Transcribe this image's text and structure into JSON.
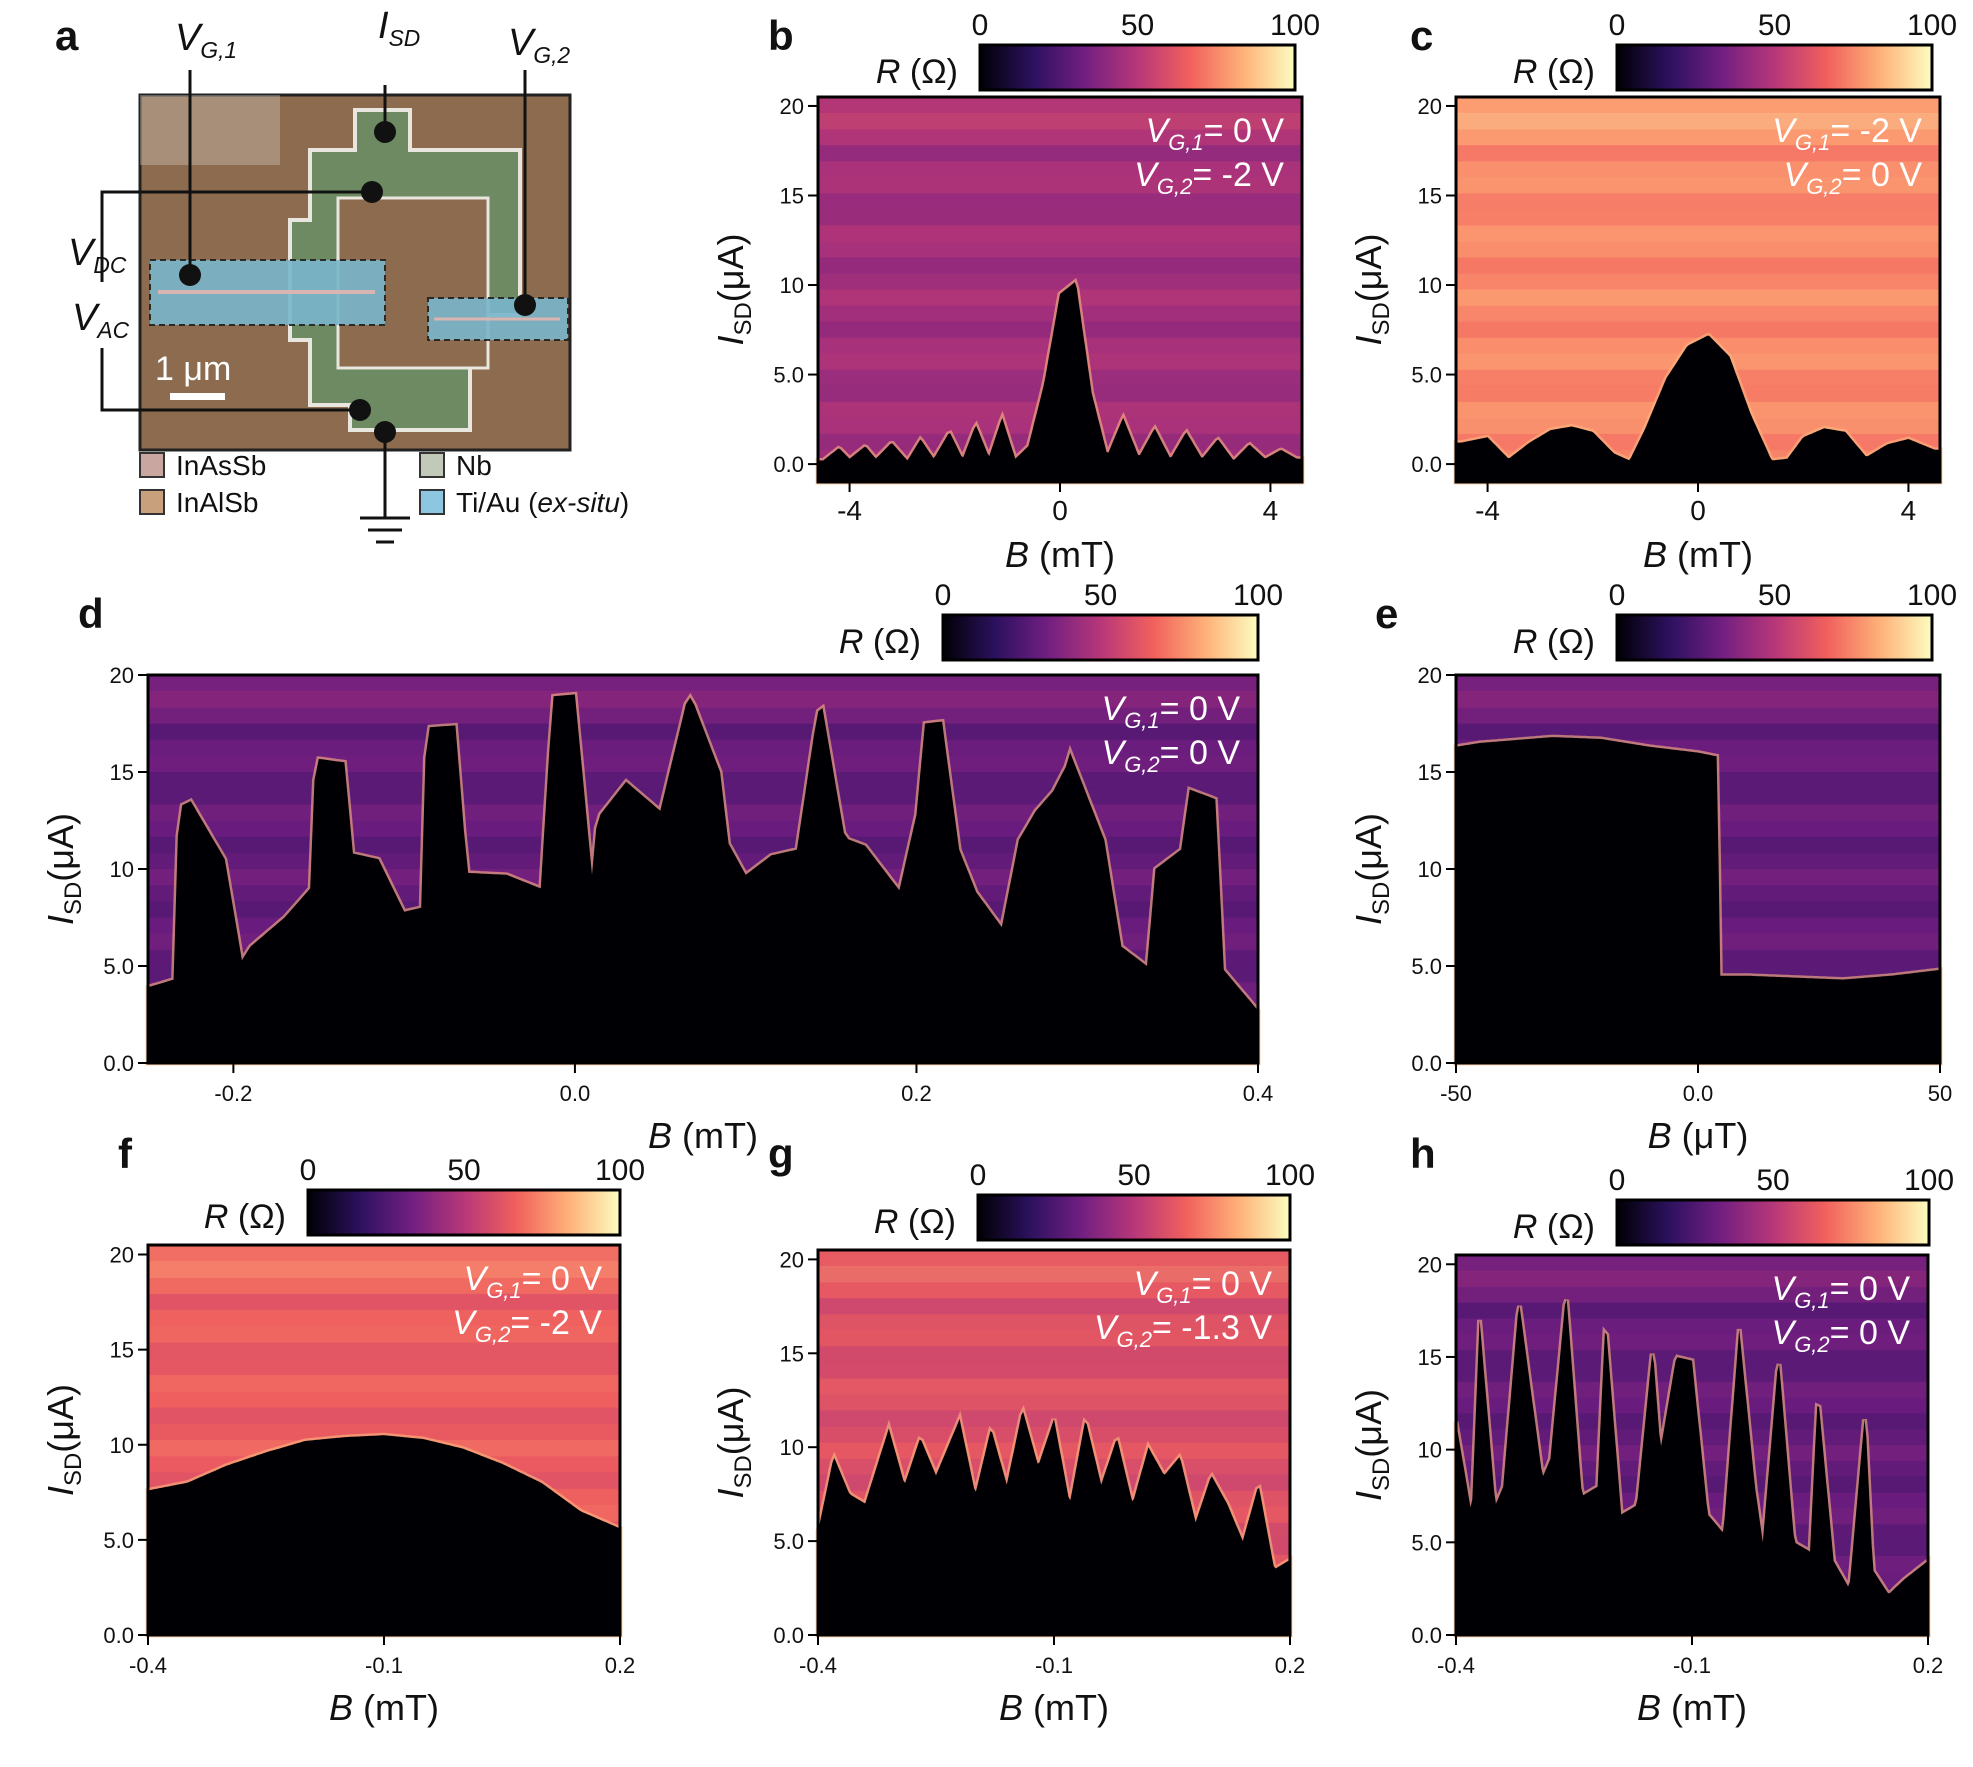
{
  "colorbar": {
    "label": "R (Ω)",
    "ticks": [
      "0",
      "50",
      "100"
    ],
    "range": [
      0,
      100
    ],
    "colormap": "inferno",
    "stops": [
      "#000004",
      "#2c115f",
      "#721f81",
      "#b73779",
      "#f1605d",
      "#feb078",
      "#fcfdbf"
    ]
  },
  "panel_a": {
    "letter": "a",
    "labels": {
      "vg1": "V",
      "vg1_sub": "G,1",
      "isd": "I",
      "isd_sub": "SD",
      "vg2": "V",
      "vg2_sub": "G,2",
      "vdc": "V",
      "vdc_sub": "DC",
      "vac": "V",
      "vac_sub": "AC",
      "scale": "1 μm"
    },
    "legend": [
      {
        "label": "InAsSb",
        "color": "#c9a6a0"
      },
      {
        "label": "InAlSb",
        "color": "#c9a07c"
      },
      {
        "label": "Nb",
        "color": "#c3c9b8"
      },
      {
        "label": "Ti/Au (ex-situ)",
        "color": "#8cc6e0"
      }
    ],
    "colors": {
      "substrate": "#8c6b4e",
      "nb": "#6e8a63",
      "tiau": "#7ab6cc"
    }
  },
  "chart_data": [
    {
      "panel": "b",
      "type": "heatmap",
      "xlabel": "B (mT)",
      "ylabel": "ISD(μA)",
      "xlim": [
        -4.6,
        4.6
      ],
      "ylim": [
        -1,
        20.5
      ],
      "xticks": [
        "-4",
        "0",
        "4"
      ],
      "yticks": [
        "0.0",
        "5.0",
        "10",
        "15",
        "20"
      ],
      "annotation": [
        "VG,1= 0 V",
        "VG,2= -2 V"
      ],
      "bg_R": 45,
      "critical_current": {
        "B": [
          -4.5,
          -4.2,
          -4.0,
          -3.7,
          -3.5,
          -3.2,
          -2.9,
          -2.65,
          -2.4,
          -2.1,
          -1.85,
          -1.6,
          -1.35,
          -1.1,
          -0.85,
          -0.6,
          -0.3,
          0.0,
          0.3,
          0.6,
          0.9,
          1.2,
          1.5,
          1.8,
          2.1,
          2.4,
          2.7,
          3.0,
          3.3,
          3.6,
          3.9,
          4.2,
          4.5
        ],
        "Ic": [
          0.2,
          0.9,
          0.3,
          1.0,
          0.3,
          1.2,
          0.2,
          1.4,
          0.3,
          1.8,
          0.3,
          2.2,
          0.4,
          2.6,
          0.3,
          1.0,
          4.5,
          9.5,
          10.2,
          4.0,
          0.5,
          2.6,
          0.4,
          2.0,
          0.3,
          1.8,
          0.3,
          1.4,
          0.2,
          1.1,
          0.3,
          0.8,
          0.3
        ]
      }
    },
    {
      "panel": "c",
      "type": "heatmap",
      "xlabel": "B (mT)",
      "ylabel": "ISD(μA)",
      "xlim": [
        -4.6,
        4.6
      ],
      "ylim": [
        -1,
        20.5
      ],
      "xticks": [
        "-4",
        "0",
        "4"
      ],
      "yticks": [
        "0.0",
        "5.0",
        "10",
        "15",
        "20"
      ],
      "annotation": [
        "VG,1= -2 V",
        "VG,2= 0 V"
      ],
      "bg_R": 75,
      "critical_current": {
        "B": [
          -4.5,
          -4.0,
          -3.6,
          -3.2,
          -2.8,
          -2.4,
          -2.0,
          -1.6,
          -1.3,
          -1.0,
          -0.6,
          -0.2,
          0.2,
          0.6,
          1.0,
          1.4,
          1.7,
          2.0,
          2.4,
          2.8,
          3.2,
          3.6,
          4.0,
          4.5
        ],
        "Ic": [
          1.2,
          1.5,
          0.3,
          1.2,
          1.9,
          2.1,
          1.8,
          0.6,
          0.2,
          2.0,
          4.8,
          6.6,
          7.2,
          6.0,
          2.8,
          0.2,
          0.3,
          1.5,
          2.0,
          1.8,
          0.4,
          1.1,
          1.4,
          0.8
        ]
      }
    },
    {
      "panel": "d",
      "type": "heatmap",
      "xlabel": "B (mT)",
      "ylabel": "ISD(μA)",
      "xlim": [
        -0.25,
        0.4
      ],
      "ylim": [
        0,
        20
      ],
      "xticks": [
        "-0.2",
        "0.0",
        "0.2",
        "0.4"
      ],
      "yticks": [
        "0.0",
        "5.0",
        "10",
        "15",
        "20"
      ],
      "annotation": [
        "VG,1= 0 V",
        "VG,2= 0 V"
      ],
      "bg_R": 30,
      "critical_current": {
        "B": [
          -0.25,
          -0.235,
          -0.232,
          -0.225,
          -0.205,
          -0.195,
          -0.19,
          -0.17,
          -0.155,
          -0.152,
          -0.135,
          -0.13,
          -0.115,
          -0.1,
          -0.09,
          -0.087,
          -0.07,
          -0.063,
          -0.04,
          -0.02,
          -0.013,
          0.0,
          0.01,
          0.013,
          0.03,
          0.05,
          0.065,
          0.068,
          0.085,
          0.09,
          0.1,
          0.115,
          0.13,
          0.142,
          0.145,
          0.158,
          0.17,
          0.19,
          0.2,
          0.205,
          0.215,
          0.225,
          0.235,
          0.25,
          0.26,
          0.27,
          0.28,
          0.29,
          0.29,
          0.31,
          0.32,
          0.335,
          0.34,
          0.355,
          0.36,
          0.375,
          0.38,
          0.4
        ],
        "Ic": [
          3.9,
          4.3,
          13.2,
          13.5,
          10.5,
          5.3,
          6.0,
          7.5,
          9.0,
          15.7,
          15.5,
          10.8,
          10.5,
          7.8,
          8.0,
          17.3,
          17.4,
          9.8,
          9.7,
          9.0,
          18.9,
          19.0,
          9.7,
          12.6,
          14.5,
          13.0,
          18.5,
          18.9,
          15.0,
          11.3,
          9.7,
          10.7,
          11.0,
          18.1,
          18.3,
          11.6,
          11.2,
          8.9,
          12.8,
          17.5,
          17.6,
          11.0,
          8.8,
          7.0,
          11.5,
          13.0,
          14.0,
          15.7,
          16.0,
          11.5,
          6.0,
          5.0,
          10.0,
          11.0,
          14.1,
          13.6,
          4.8,
          2.7
        ]
      }
    },
    {
      "panel": "e",
      "type": "heatmap",
      "xlabel": "B (μT)",
      "ylabel": "ISD(μA)",
      "xlim": [
        -50,
        50
      ],
      "ylim": [
        0,
        20
      ],
      "xticks": [
        "-50",
        "0.0",
        "50"
      ],
      "yticks": [
        "0.0",
        "5.0",
        "10",
        "15",
        "20"
      ],
      "annotation": [],
      "bg_R": 30,
      "critical_current": {
        "B": [
          -50,
          -45,
          -40,
          -30,
          -20,
          -10,
          0,
          4,
          4.5,
          10,
          20,
          30,
          40,
          50
        ],
        "Ic": [
          16.3,
          16.5,
          16.6,
          16.8,
          16.7,
          16.3,
          16.0,
          15.8,
          4.5,
          4.5,
          4.4,
          4.3,
          4.5,
          4.8
        ]
      }
    },
    {
      "panel": "f",
      "type": "heatmap",
      "xlabel": "B (mT)",
      "ylabel": "ISD(μA)",
      "xlim": [
        -0.4,
        0.2
      ],
      "ylim": [
        0,
        20.5
      ],
      "xticks": [
        "-0.4",
        "-0.1",
        "0.2"
      ],
      "yticks": [
        "0.0",
        "5.0",
        "10",
        "15",
        "20"
      ],
      "annotation": [
        "VG,1= 0 V",
        "VG,2= -2 V"
      ],
      "bg_R": 65,
      "critical_current": {
        "B": [
          -0.4,
          -0.35,
          -0.3,
          -0.25,
          -0.2,
          -0.15,
          -0.1,
          -0.05,
          0.0,
          0.05,
          0.1,
          0.15,
          0.2
        ],
        "Ic": [
          7.6,
          8.0,
          8.9,
          9.6,
          10.2,
          10.4,
          10.5,
          10.3,
          9.8,
          9.0,
          8.0,
          6.5,
          5.6
        ]
      }
    },
    {
      "panel": "g",
      "type": "heatmap",
      "xlabel": "B (mT)",
      "ylabel": "ISD(μA)",
      "xlim": [
        -0.4,
        0.2
      ],
      "ylim": [
        0,
        20.5
      ],
      "xticks": [
        "-0.4",
        "-0.1",
        "0.2"
      ],
      "yticks": [
        "0.0",
        "5.0",
        "10",
        "15",
        "20"
      ],
      "annotation": [
        "VG,1= 0 V",
        "VG,2= -1.3 V"
      ],
      "bg_R": 60,
      "critical_current": {
        "B": [
          -0.4,
          -0.38,
          -0.36,
          -0.34,
          -0.31,
          -0.29,
          -0.27,
          -0.25,
          -0.22,
          -0.2,
          -0.18,
          -0.16,
          -0.14,
          -0.12,
          -0.1,
          -0.08,
          -0.06,
          -0.04,
          -0.02,
          0.0,
          0.02,
          0.04,
          0.06,
          0.08,
          0.1,
          0.12,
          0.14,
          0.16,
          0.18,
          0.2
        ],
        "Ic": [
          5.5,
          9.5,
          7.5,
          7.0,
          11.0,
          8.0,
          10.5,
          8.5,
          11.5,
          7.5,
          11.0,
          8.0,
          12.0,
          9.0,
          11.5,
          7.0,
          11.5,
          8.0,
          10.5,
          7.0,
          10.0,
          8.5,
          9.5,
          6.0,
          8.5,
          7.0,
          5.0,
          8.0,
          3.5,
          4.0
        ]
      }
    },
    {
      "panel": "h",
      "type": "heatmap",
      "xlabel": "B (mT)",
      "ylabel": "ISD(μA)",
      "xlim": [
        -0.4,
        0.2
      ],
      "ylim": [
        0,
        20.5
      ],
      "xticks": [
        "-0.4",
        "-0.1",
        "0.2"
      ],
      "yticks": [
        "0.0",
        "5.0",
        "10",
        "15",
        "20"
      ],
      "annotation": [
        "VG,1= 0 V",
        "VG,2= 0 V"
      ],
      "bg_R": 30,
      "critical_current": {
        "B": [
          -0.4,
          -0.38,
          -0.37,
          -0.35,
          -0.34,
          -0.32,
          -0.29,
          -0.28,
          -0.26,
          -0.24,
          -0.22,
          -0.21,
          -0.19,
          -0.17,
          -0.15,
          -0.14,
          -0.12,
          -0.1,
          -0.08,
          -0.06,
          -0.04,
          -0.02,
          -0.01,
          0.01,
          0.03,
          0.05,
          0.06,
          0.08,
          0.1,
          0.12,
          0.13,
          0.15,
          0.17,
          0.2
        ],
        "Ic": [
          11.5,
          6.5,
          17.0,
          7.0,
          8.0,
          18.0,
          8.5,
          9.5,
          18.5,
          7.5,
          8.0,
          17.0,
          6.5,
          7.0,
          15.5,
          10.0,
          15.0,
          14.8,
          6.5,
          5.5,
          16.5,
          8.0,
          5.0,
          15.0,
          5.0,
          4.5,
          13.0,
          4.0,
          2.5,
          12.0,
          3.5,
          2.2,
          3.0,
          4.0
        ]
      }
    }
  ]
}
